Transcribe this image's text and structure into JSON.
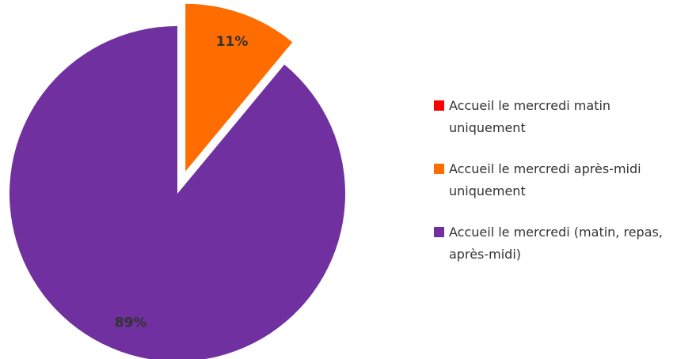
{
  "chart_data": {
    "type": "pie",
    "categories": [
      "Accueil le mercredi matin uniquement",
      "Accueil le mercredi après-midi uniquement",
      "Accueil le mercredi (matin, repas, après-midi)"
    ],
    "values": [
      0,
      11,
      89
    ],
    "value_labels": [
      null,
      "11%",
      "89%"
    ],
    "colors": [
      "#ff0000",
      "#ff6d00",
      "#7030a0"
    ],
    "legend": "right"
  }
}
